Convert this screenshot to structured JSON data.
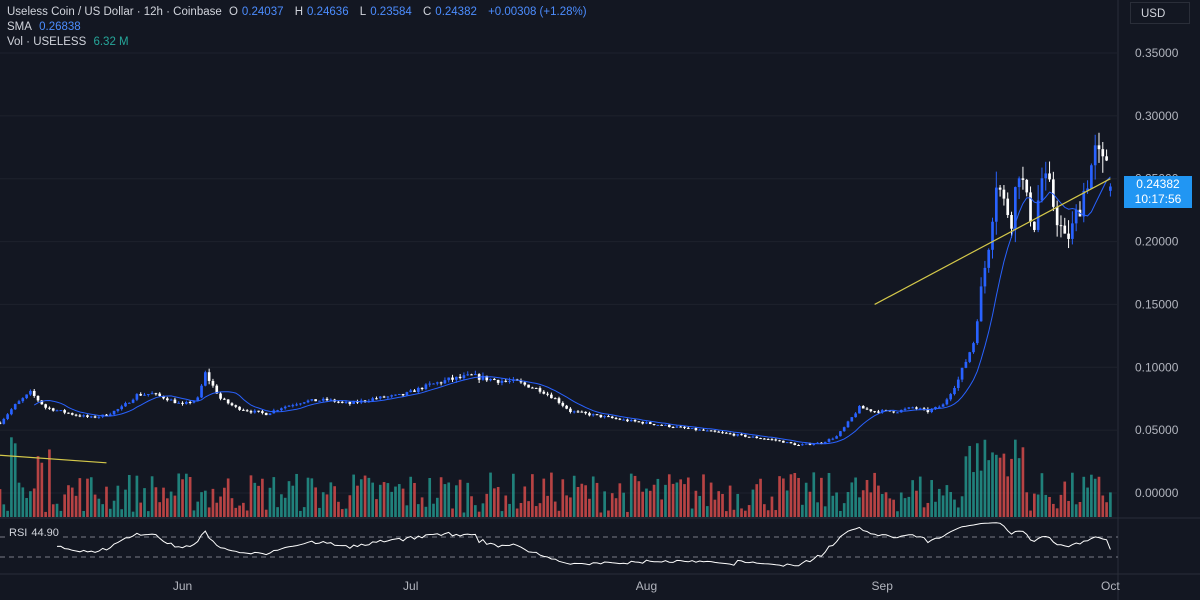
{
  "header": {
    "symbol": "Useless Coin / US Dollar · 12h · Coinbase",
    "o_label": "O",
    "o_value": "0.24037",
    "h_label": "H",
    "h_value": "0.24636",
    "l_label": "L",
    "l_value": "0.23584",
    "c_label": "C",
    "c_value": "0.24382",
    "change": "+0.00308 (+1.28%)",
    "sma_label": "SMA",
    "sma_value": "0.26838",
    "vol_label": "Vol · USELESS",
    "vol_value": "6.32 M"
  },
  "currency": "USD",
  "price_tag": {
    "price": "0.24382",
    "countdown": "10:17:56"
  },
  "rsi": {
    "label": "RSI",
    "value": "44.90"
  },
  "colors": {
    "up": "#26a69a",
    "down": "#ef5350",
    "candle_up": "#2962ff",
    "candle_down": "#ffffff",
    "sma": "#2962ff",
    "trendline": "#d4c84a",
    "rsi": "#ffffff",
    "price_tag": "#2196f3",
    "background": "#131722"
  },
  "chart_data": {
    "type": "candlestick",
    "title": "Useless Coin / US Dollar · 12h · Coinbase",
    "x_ticks": [
      "Jun",
      "Jul",
      "Aug",
      "Sep",
      "Oct"
    ],
    "y_ticks": [
      "0.35000",
      "0.30000",
      "0.25000",
      "0.20000",
      "0.15000",
      "0.10000",
      "0.05000",
      "0.00000"
    ],
    "ylim": [
      -0.02,
      0.36
    ],
    "x_range": [
      "2025-05-08",
      "2025-10-02"
    ],
    "trendline_up": [
      [
        "2025-08-31",
        0.15
      ],
      [
        "2025-10-01",
        0.25
      ]
    ],
    "trendline_left": [
      [
        "2025-05-08",
        0.03
      ],
      [
        "2025-05-22",
        0.024
      ]
    ],
    "rsi_levels": [
      70,
      30
    ],
    "rsi_last": 44.9,
    "anchors": [
      [
        "2025-05-08",
        0.056
      ],
      [
        "2025-05-10",
        0.07
      ],
      [
        "2025-05-12",
        0.08
      ],
      [
        "2025-05-14",
        0.068
      ],
      [
        "2025-05-16",
        0.065
      ],
      [
        "2025-05-18",
        0.062
      ],
      [
        "2025-05-20",
        0.06
      ],
      [
        "2025-05-22",
        0.062
      ],
      [
        "2025-05-24",
        0.068
      ],
      [
        "2025-05-26",
        0.078
      ],
      [
        "2025-05-28",
        0.079
      ],
      [
        "2025-05-30",
        0.075
      ],
      [
        "2025-06-01",
        0.07
      ],
      [
        "2025-06-03",
        0.075
      ],
      [
        "2025-06-04",
        0.095
      ],
      [
        "2025-06-06",
        0.075
      ],
      [
        "2025-06-08",
        0.068
      ],
      [
        "2025-06-10",
        0.065
      ],
      [
        "2025-06-12",
        0.063
      ],
      [
        "2025-06-14",
        0.068
      ],
      [
        "2025-06-17",
        0.073
      ],
      [
        "2025-06-20",
        0.074
      ],
      [
        "2025-06-23",
        0.071
      ],
      [
        "2025-06-26",
        0.075
      ],
      [
        "2025-06-30",
        0.078
      ],
      [
        "2025-07-03",
        0.085
      ],
      [
        "2025-07-06",
        0.09
      ],
      [
        "2025-07-09",
        0.093
      ],
      [
        "2025-07-12",
        0.09
      ],
      [
        "2025-07-15",
        0.088
      ],
      [
        "2025-07-18",
        0.082
      ],
      [
        "2025-07-20",
        0.075
      ],
      [
        "2025-07-22",
        0.065
      ],
      [
        "2025-07-25",
        0.062
      ],
      [
        "2025-07-29",
        0.058
      ],
      [
        "2025-08-03",
        0.054
      ],
      [
        "2025-08-08",
        0.05
      ],
      [
        "2025-08-13",
        0.046
      ],
      [
        "2025-08-18",
        0.042
      ],
      [
        "2025-08-21",
        0.038
      ],
      [
        "2025-08-24",
        0.04
      ],
      [
        "2025-08-26",
        0.045
      ],
      [
        "2025-08-27",
        0.052
      ],
      [
        "2025-08-29",
        0.068
      ],
      [
        "2025-08-31",
        0.065
      ],
      [
        "2025-09-03",
        0.065
      ],
      [
        "2025-09-05",
        0.068
      ],
      [
        "2025-09-07",
        0.065
      ],
      [
        "2025-09-09",
        0.07
      ],
      [
        "2025-09-11",
        0.09
      ],
      [
        "2025-09-13",
        0.12
      ],
      [
        "2025-09-14",
        0.16
      ],
      [
        "2025-09-15",
        0.2
      ],
      [
        "2025-09-16",
        0.25
      ],
      [
        "2025-09-17",
        0.23
      ],
      [
        "2025-09-18",
        0.22
      ],
      [
        "2025-09-19",
        0.26
      ],
      [
        "2025-09-20",
        0.23
      ],
      [
        "2025-09-21",
        0.215
      ],
      [
        "2025-09-22",
        0.25
      ],
      [
        "2025-09-23",
        0.24
      ],
      [
        "2025-09-24",
        0.22
      ],
      [
        "2025-09-25",
        0.2
      ],
      [
        "2025-09-26",
        0.21
      ],
      [
        "2025-09-27",
        0.23
      ],
      [
        "2025-09-28",
        0.25
      ],
      [
        "2025-09-29",
        0.27
      ],
      [
        "2025-09-30",
        0.26
      ],
      [
        "2025-10-01",
        0.275
      ]
    ]
  }
}
